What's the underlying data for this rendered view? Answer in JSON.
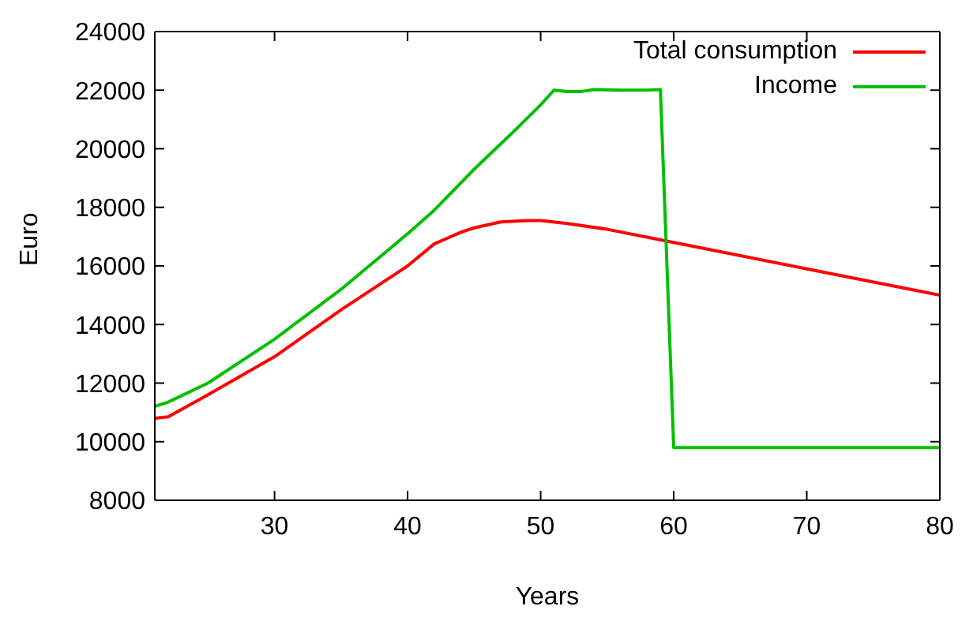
{
  "chart_data": {
    "type": "line",
    "xlabel": "Years",
    "ylabel": "Euro",
    "xlim": [
      21,
      80
    ],
    "xticks": [
      30,
      40,
      50,
      60,
      70,
      80
    ],
    "ylim": [
      8000,
      24000
    ],
    "yticks": [
      8000,
      10000,
      12000,
      14000,
      16000,
      18000,
      20000,
      22000,
      24000
    ],
    "grid": false,
    "legend": "top right",
    "marker": "none",
    "line_style": "solid",
    "series": [
      {
        "name": "Total consumption",
        "color": "#ff0000",
        "x": [
          21,
          22,
          25,
          30,
          35,
          40,
          42,
          43,
          44,
          45,
          47,
          49,
          50,
          52,
          55,
          60,
          70,
          80
        ],
        "values": [
          10800,
          10850,
          11600,
          12900,
          14500,
          16000,
          16750,
          16950,
          17150,
          17300,
          17500,
          17550,
          17550,
          17450,
          17250,
          16800,
          15900,
          15000
        ]
      },
      {
        "name": "Income",
        "color": "#00c000",
        "x": [
          21,
          22,
          25,
          30,
          35,
          40,
          42,
          45,
          48,
          50,
          51,
          52,
          53,
          54,
          56,
          58,
          59,
          60,
          80
        ],
        "values": [
          11200,
          11350,
          12000,
          13500,
          15200,
          17100,
          17900,
          19300,
          20600,
          21500,
          22000,
          21950,
          21950,
          22020,
          22000,
          22000,
          22020,
          9800,
          9800
        ]
      }
    ]
  }
}
